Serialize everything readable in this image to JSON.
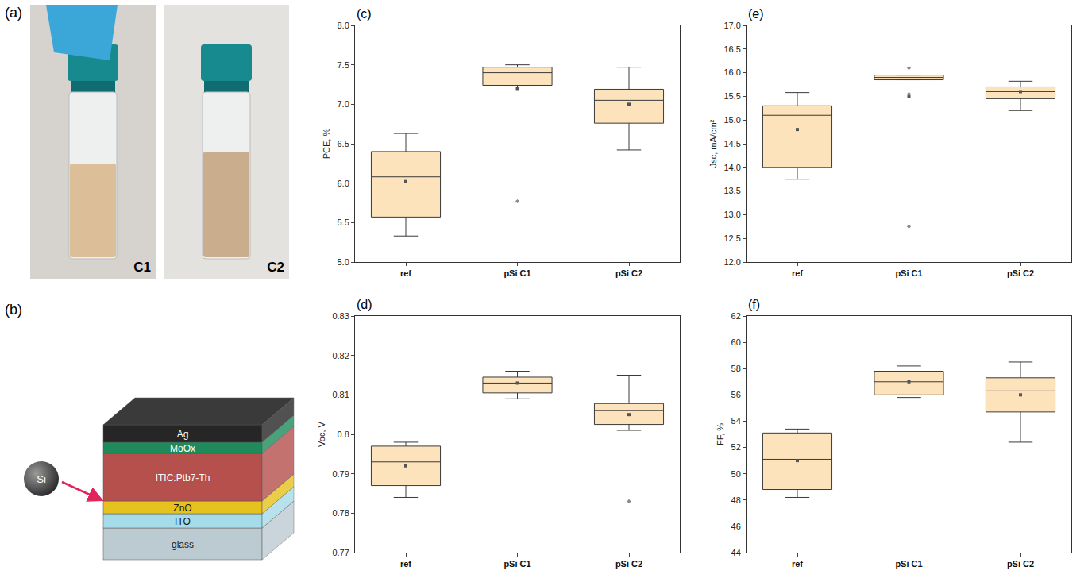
{
  "panels": {
    "a": {
      "label": "(a)",
      "photos": [
        "C1",
        "C2"
      ]
    },
    "b": {
      "label": "(b)",
      "particle": "Si",
      "layers": [
        {
          "name": "Ag",
          "color": "#262626"
        },
        {
          "name": "MoOx",
          "color": "#1f8a5a"
        },
        {
          "name": "ITIC:Ptb7-Th",
          "color": "#b5504c"
        },
        {
          "name": "ZnO",
          "color": "#e6c21e"
        },
        {
          "name": "ITO",
          "color": "#a6dbe9"
        },
        {
          "name": "glass",
          "color": "#bccbd2"
        }
      ]
    }
  },
  "chart_data": [
    {
      "type": "box",
      "label": "(c)",
      "y_label": "PCE, %",
      "color": "#fde3bc",
      "categories": [
        "ref",
        "pSi C1",
        "pSi C2"
      ],
      "ylim": [
        5.0,
        8.0
      ],
      "yticks": [
        {
          "value": 5,
          "label": "5.0"
        },
        5.5,
        {
          "value": 6,
          "label": "6.0"
        },
        6.5,
        {
          "value": 7,
          "label": "7.0"
        },
        7.5,
        {
          "value": 8,
          "label": "8.0"
        }
      ],
      "boxes": [
        {
          "q1": 5.57,
          "median": 6.08,
          "q3": 6.4,
          "lower": 5.33,
          "upper": 6.63,
          "mean": 6.02,
          "outliers": []
        },
        {
          "q1": 7.24,
          "median": 7.4,
          "q3": 7.47,
          "lower": 7.22,
          "upper": 7.5,
          "mean": 7.2,
          "outliers": [
            5.77
          ]
        },
        {
          "q1": 6.76,
          "median": 7.05,
          "q3": 7.19,
          "lower": 6.42,
          "upper": 7.47,
          "mean": 7.0,
          "outliers": []
        }
      ]
    },
    {
      "type": "box",
      "label": "(e)",
      "y_label": "Jsc, mA/cm²",
      "color": "#fde3bc",
      "categories": [
        "ref",
        "pSi C1",
        "pSi C2"
      ],
      "ylim": [
        12.0,
        17.0
      ],
      "yticks": [
        {
          "value": 12,
          "label": "12.0"
        },
        12.5,
        {
          "value": 13,
          "label": "13.0"
        },
        13.5,
        {
          "value": 14,
          "label": "14.0"
        },
        14.5,
        {
          "value": 15,
          "label": "15.0"
        },
        15.5,
        {
          "value": 16,
          "label": "16.0"
        },
        16.5,
        {
          "value": 17,
          "label": "17.0"
        }
      ],
      "boxes": [
        {
          "q1": 14.0,
          "median": 15.1,
          "q3": 15.3,
          "lower": 13.75,
          "upper": 15.58,
          "mean": 14.8,
          "outliers": []
        },
        {
          "q1": 15.85,
          "median": 15.9,
          "q3": 15.95,
          "lower": 15.85,
          "upper": 15.95,
          "mean": 15.5,
          "outliers": [
            16.1,
            15.55,
            12.75
          ]
        },
        {
          "q1": 15.45,
          "median": 15.6,
          "q3": 15.7,
          "lower": 15.2,
          "upper": 15.82,
          "mean": 15.6,
          "outliers": []
        }
      ]
    },
    {
      "type": "box",
      "label": "(d)",
      "y_label": "Voc, V",
      "color": "#fde3bc",
      "categories": [
        "ref",
        "pSi C1",
        "pSi C2"
      ],
      "ylim": [
        0.77,
        0.83
      ],
      "yticks": [
        0.77,
        0.78,
        0.79,
        0.8,
        0.81,
        0.82,
        0.83
      ],
      "boxes": [
        {
          "q1": 0.787,
          "median": 0.793,
          "q3": 0.797,
          "lower": 0.784,
          "upper": 0.798,
          "mean": 0.792,
          "outliers": []
        },
        {
          "q1": 0.8105,
          "median": 0.813,
          "q3": 0.8145,
          "lower": 0.809,
          "upper": 0.816,
          "mean": 0.813,
          "outliers": []
        },
        {
          "q1": 0.8025,
          "median": 0.806,
          "q3": 0.8078,
          "lower": 0.801,
          "upper": 0.815,
          "mean": 0.805,
          "outliers": [
            0.783
          ]
        }
      ]
    },
    {
      "type": "box",
      "label": "(f)",
      "y_label": "FF, %",
      "color": "#fde3bc",
      "categories": [
        "ref",
        "pSi C1",
        "pSi C2"
      ],
      "ylim": [
        44,
        62
      ],
      "yticks": [
        44,
        46,
        48,
        50,
        52,
        54,
        56,
        58,
        60,
        62
      ],
      "boxes": [
        {
          "q1": 48.8,
          "median": 51.1,
          "q3": 53.1,
          "lower": 48.2,
          "upper": 53.4,
          "mean": 51.0,
          "outliers": []
        },
        {
          "q1": 56.0,
          "median": 57.0,
          "q3": 57.8,
          "lower": 55.8,
          "upper": 58.2,
          "mean": 57.0,
          "outliers": []
        },
        {
          "q1": 54.7,
          "median": 56.3,
          "q3": 57.3,
          "lower": 52.4,
          "upper": 58.5,
          "mean": 56.0,
          "outliers": []
        }
      ]
    }
  ]
}
